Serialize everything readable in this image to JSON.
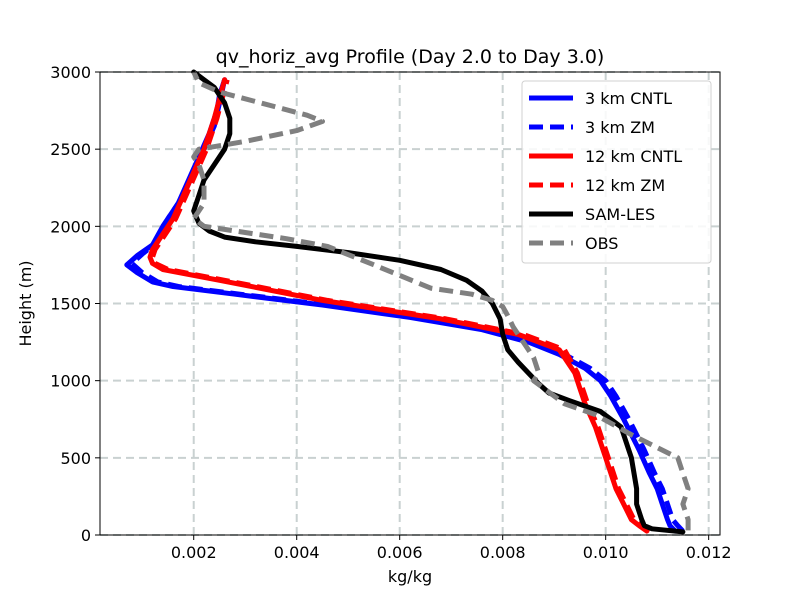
{
  "chart_data": {
    "type": "line",
    "title": "qv_horiz_avg Profile (Day 2.0 to Day 3.0)",
    "xlabel": "kg/kg",
    "ylabel": "Height (m)",
    "xlim": [
      0.00018,
      0.01222
    ],
    "ylim": [
      0,
      3000
    ],
    "grid": true,
    "legend_position": "top-right",
    "x_ticks": [
      0.002,
      0.004,
      0.006,
      0.008,
      0.01,
      0.012
    ],
    "x_tick_labels": [
      "0.002",
      "0.004",
      "0.006",
      "0.008",
      "0.010",
      "0.012"
    ],
    "y_ticks": [
      0,
      500,
      1000,
      1500,
      2000,
      2500,
      3000
    ],
    "y_tick_labels": [
      "0",
      "500",
      "1000",
      "1500",
      "2000",
      "2500",
      "3000"
    ],
    "series": [
      {
        "name": "3 km CNTL",
        "color": "#0000ff",
        "style": "solid",
        "x": [
          0.01135,
          0.01125,
          0.0112,
          0.0111,
          0.011,
          0.01085,
          0.01065,
          0.01035,
          0.0101,
          0.0099,
          0.0096,
          0.0091,
          0.0085,
          0.0076,
          0.0062,
          0.0045,
          0.0028,
          0.0016,
          0.0012,
          0.0009,
          0.0007,
          0.0009,
          0.0012,
          0.0014,
          0.0017,
          0.0019,
          0.0021,
          0.0023,
          0.00245,
          0.0025,
          0.0026
        ],
        "y": [
          25,
          60,
          100,
          200,
          300,
          400,
          550,
          750,
          900,
          1000,
          1080,
          1170,
          1250,
          1330,
          1410,
          1490,
          1560,
          1610,
          1640,
          1700,
          1750,
          1810,
          1880,
          2000,
          2150,
          2300,
          2450,
          2600,
          2750,
          2850,
          2950
        ]
      },
      {
        "name": "3 km ZM",
        "color": "#0000ff",
        "style": "dashed",
        "x": [
          0.0115,
          0.0114,
          0.0113,
          0.0112,
          0.0111,
          0.01095,
          0.01075,
          0.01045,
          0.0102,
          0.01,
          0.0097,
          0.0092,
          0.0086,
          0.0077,
          0.0063,
          0.0046,
          0.0029,
          0.0017,
          0.0013,
          0.001,
          0.0008,
          0.001,
          0.0013,
          0.0015,
          0.0018,
          0.002,
          0.0022,
          0.0024,
          0.0025,
          0.0026
        ],
        "y": [
          25,
          60,
          100,
          200,
          300,
          400,
          550,
          750,
          900,
          1000,
          1080,
          1170,
          1250,
          1330,
          1410,
          1490,
          1560,
          1610,
          1640,
          1700,
          1760,
          1820,
          1900,
          2050,
          2200,
          2350,
          2500,
          2650,
          2800,
          2950
        ]
      },
      {
        "name": "12 km CNTL",
        "color": "#ff0000",
        "style": "solid",
        "x": [
          0.0108,
          0.01065,
          0.0105,
          0.01035,
          0.0102,
          0.01,
          0.0098,
          0.0096,
          0.0095,
          0.0094,
          0.0091,
          0.0083,
          0.0068,
          0.0045,
          0.0025,
          0.0014,
          0.0012,
          0.00115,
          0.0012,
          0.0014,
          0.0016,
          0.0018,
          0.002,
          0.0022,
          0.0024,
          0.0026
        ],
        "y": [
          25,
          60,
          100,
          200,
          300,
          500,
          700,
          850,
          950,
          1050,
          1200,
          1300,
          1400,
          1520,
          1650,
          1720,
          1760,
          1800,
          1850,
          1950,
          2050,
          2200,
          2350,
          2500,
          2700,
          2950
        ]
      },
      {
        "name": "12 km ZM",
        "color": "#ff0000",
        "style": "dashed",
        "x": [
          0.01085,
          0.0107,
          0.01055,
          0.0104,
          0.01025,
          0.01005,
          0.00985,
          0.00965,
          0.00955,
          0.00945,
          0.0092,
          0.0084,
          0.0069,
          0.0046,
          0.0026,
          0.0015,
          0.00125,
          0.0012,
          0.00125,
          0.00145,
          0.00165,
          0.00185,
          0.00205,
          0.00225,
          0.00245,
          0.00265
        ],
        "y": [
          25,
          60,
          100,
          200,
          300,
          500,
          700,
          850,
          950,
          1050,
          1200,
          1300,
          1400,
          1520,
          1650,
          1720,
          1760,
          1800,
          1850,
          1950,
          2050,
          2200,
          2350,
          2500,
          2700,
          2950
        ]
      },
      {
        "name": "SAM-LES",
        "color": "#000000",
        "style": "solid",
        "x": [
          0.0115,
          0.0109,
          0.01075,
          0.0107,
          0.0106,
          0.0106,
          0.0105,
          0.0103,
          0.0099,
          0.0093,
          0.0089,
          0.0087,
          0.0085,
          0.0083,
          0.0081,
          0.008,
          0.00795,
          0.0078,
          0.0076,
          0.0073,
          0.0068,
          0.006,
          0.005,
          0.004,
          0.0032,
          0.0026,
          0.0023,
          0.0021,
          0.002,
          0.0021,
          0.0022,
          0.0024,
          0.0026,
          0.0027,
          0.0027,
          0.0026,
          0.0024,
          0.0022,
          0.002
        ],
        "y": [
          20,
          40,
          60,
          100,
          200,
          300,
          500,
          700,
          800,
          870,
          920,
          980,
          1050,
          1120,
          1200,
          1300,
          1400,
          1500,
          1580,
          1650,
          1720,
          1780,
          1830,
          1870,
          1900,
          1930,
          1970,
          2020,
          2100,
          2200,
          2300,
          2400,
          2500,
          2600,
          2700,
          2800,
          2900,
          2950,
          3000
        ]
      },
      {
        "name": "OBS",
        "color": "#808080",
        "style": "dashed",
        "x": [
          0.0116,
          0.0116,
          0.0115,
          0.0116,
          0.0115,
          0.0114,
          0.0105,
          0.0098,
          0.0092,
          0.0088,
          0.0086,
          0.0087,
          0.0086,
          0.0084,
          0.0083,
          0.0082,
          0.0081,
          0.008,
          0.0078,
          0.0074,
          0.0066,
          0.0055,
          0.0046,
          0.0038,
          0.003,
          0.0022,
          0.002,
          0.0021,
          0.0022,
          0.0022,
          0.0022,
          0.0021,
          0.002,
          0.0021,
          0.003,
          0.004,
          0.0045,
          0.0042,
          0.0033,
          0.0025,
          0.0021,
          0.002
        ],
        "y": [
          30,
          100,
          200,
          300,
          400,
          500,
          650,
          780,
          850,
          950,
          1000,
          1050,
          1150,
          1250,
          1300,
          1350,
          1420,
          1480,
          1520,
          1560,
          1600,
          1750,
          1870,
          1920,
          1960,
          2000,
          2050,
          2100,
          2150,
          2200,
          2300,
          2400,
          2450,
          2500,
          2550,
          2620,
          2680,
          2720,
          2800,
          2870,
          2930,
          3000
        ]
      }
    ]
  }
}
